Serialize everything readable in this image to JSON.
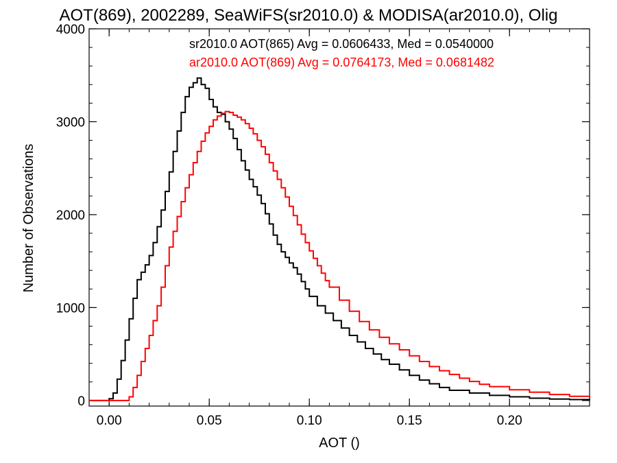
{
  "chart_data": {
    "type": "step-histogram",
    "title": "AOT(869), 2002289, SeaWiFS(sr2010.0) & MODISA(ar2010.0), Olig",
    "xlabel": "AOT ()",
    "ylabel": "Number of Observations",
    "xlim": [
      -0.01,
      0.24
    ],
    "ylim": [
      -60,
      4000
    ],
    "xticks": [
      0.0,
      0.05,
      0.1,
      0.15,
      0.2
    ],
    "xtick_labels": [
      "0.00",
      "0.05",
      "0.10",
      "0.15",
      "0.20"
    ],
    "yticks": [
      0,
      1000,
      2000,
      3000,
      4000
    ],
    "ytick_labels": [
      "0",
      "1000",
      "2000",
      "3000",
      "4000"
    ],
    "legend_placement": "top-right",
    "series": [
      {
        "label": "sr2010.0 AOT(865) Avg = 0.0606433, Med = 0.0540000",
        "color": "#000000",
        "points": [
          [
            -0.01,
            0
          ],
          [
            -0.001,
            0
          ],
          [
            0.0,
            20
          ],
          [
            0.002,
            80
          ],
          [
            0.004,
            230
          ],
          [
            0.006,
            430
          ],
          [
            0.008,
            650
          ],
          [
            0.01,
            880
          ],
          [
            0.012,
            1100
          ],
          [
            0.014,
            1300
          ],
          [
            0.016,
            1380
          ],
          [
            0.018,
            1460
          ],
          [
            0.02,
            1560
          ],
          [
            0.022,
            1700
          ],
          [
            0.024,
            1870
          ],
          [
            0.026,
            2050
          ],
          [
            0.028,
            2250
          ],
          [
            0.03,
            2460
          ],
          [
            0.032,
            2680
          ],
          [
            0.034,
            2900
          ],
          [
            0.036,
            3100
          ],
          [
            0.038,
            3270
          ],
          [
            0.04,
            3370
          ],
          [
            0.042,
            3420
          ],
          [
            0.044,
            3470
          ],
          [
            0.046,
            3400
          ],
          [
            0.048,
            3360
          ],
          [
            0.05,
            3240
          ],
          [
            0.052,
            3160
          ],
          [
            0.054,
            3100
          ],
          [
            0.056,
            3080
          ],
          [
            0.058,
            3000
          ],
          [
            0.06,
            2920
          ],
          [
            0.062,
            2820
          ],
          [
            0.064,
            2700
          ],
          [
            0.066,
            2580
          ],
          [
            0.068,
            2480
          ],
          [
            0.07,
            2380
          ],
          [
            0.072,
            2300
          ],
          [
            0.074,
            2210
          ],
          [
            0.076,
            2120
          ],
          [
            0.078,
            2010
          ],
          [
            0.08,
            1900
          ],
          [
            0.082,
            1780
          ],
          [
            0.084,
            1680
          ],
          [
            0.086,
            1600
          ],
          [
            0.088,
            1540
          ],
          [
            0.09,
            1480
          ],
          [
            0.092,
            1430
          ],
          [
            0.094,
            1360
          ],
          [
            0.096,
            1280
          ],
          [
            0.098,
            1200
          ],
          [
            0.1,
            1120
          ],
          [
            0.104,
            1020
          ],
          [
            0.108,
            940
          ],
          [
            0.112,
            860
          ],
          [
            0.116,
            780
          ],
          [
            0.12,
            700
          ],
          [
            0.124,
            630
          ],
          [
            0.128,
            560
          ],
          [
            0.132,
            500
          ],
          [
            0.136,
            440
          ],
          [
            0.14,
            390
          ],
          [
            0.145,
            330
          ],
          [
            0.15,
            270
          ],
          [
            0.155,
            220
          ],
          [
            0.16,
            180
          ],
          [
            0.165,
            140
          ],
          [
            0.17,
            110
          ],
          [
            0.18,
            80
          ],
          [
            0.19,
            55
          ],
          [
            0.2,
            40
          ],
          [
            0.21,
            25
          ],
          [
            0.22,
            15
          ],
          [
            0.23,
            10
          ],
          [
            0.24,
            5
          ]
        ]
      },
      {
        "label": "ar2010.0 AOT(869) Avg = 0.0764173, Med = 0.0681482",
        "color": "#ff0000",
        "points": [
          [
            -0.01,
            0
          ],
          [
            0.008,
            0
          ],
          [
            0.01,
            40
          ],
          [
            0.012,
            140
          ],
          [
            0.014,
            270
          ],
          [
            0.016,
            420
          ],
          [
            0.018,
            560
          ],
          [
            0.02,
            700
          ],
          [
            0.022,
            860
          ],
          [
            0.024,
            1020
          ],
          [
            0.026,
            1220
          ],
          [
            0.028,
            1450
          ],
          [
            0.03,
            1650
          ],
          [
            0.032,
            1820
          ],
          [
            0.034,
            1980
          ],
          [
            0.036,
            2140
          ],
          [
            0.038,
            2290
          ],
          [
            0.04,
            2430
          ],
          [
            0.042,
            2560
          ],
          [
            0.044,
            2680
          ],
          [
            0.046,
            2790
          ],
          [
            0.048,
            2880
          ],
          [
            0.05,
            2950
          ],
          [
            0.052,
            3020
          ],
          [
            0.054,
            3060
          ],
          [
            0.056,
            3090
          ],
          [
            0.058,
            3110
          ],
          [
            0.06,
            3100
          ],
          [
            0.062,
            3070
          ],
          [
            0.064,
            3050
          ],
          [
            0.066,
            3020
          ],
          [
            0.068,
            2980
          ],
          [
            0.07,
            2930
          ],
          [
            0.072,
            2870
          ],
          [
            0.074,
            2800
          ],
          [
            0.076,
            2730
          ],
          [
            0.078,
            2650
          ],
          [
            0.08,
            2560
          ],
          [
            0.082,
            2470
          ],
          [
            0.084,
            2380
          ],
          [
            0.086,
            2290
          ],
          [
            0.088,
            2190
          ],
          [
            0.09,
            2090
          ],
          [
            0.092,
            1990
          ],
          [
            0.094,
            1890
          ],
          [
            0.096,
            1790
          ],
          [
            0.098,
            1700
          ],
          [
            0.1,
            1610
          ],
          [
            0.102,
            1530
          ],
          [
            0.104,
            1450
          ],
          [
            0.106,
            1370
          ],
          [
            0.108,
            1290
          ],
          [
            0.11,
            1220
          ],
          [
            0.115,
            1080
          ],
          [
            0.12,
            960
          ],
          [
            0.125,
            850
          ],
          [
            0.13,
            760
          ],
          [
            0.135,
            680
          ],
          [
            0.14,
            610
          ],
          [
            0.145,
            545
          ],
          [
            0.15,
            480
          ],
          [
            0.155,
            420
          ],
          [
            0.16,
            365
          ],
          [
            0.165,
            320
          ],
          [
            0.17,
            280
          ],
          [
            0.175,
            240
          ],
          [
            0.18,
            205
          ],
          [
            0.185,
            175
          ],
          [
            0.19,
            150
          ],
          [
            0.2,
            115
          ],
          [
            0.21,
            90
          ],
          [
            0.22,
            65
          ],
          [
            0.23,
            45
          ],
          [
            0.24,
            30
          ]
        ]
      }
    ]
  }
}
